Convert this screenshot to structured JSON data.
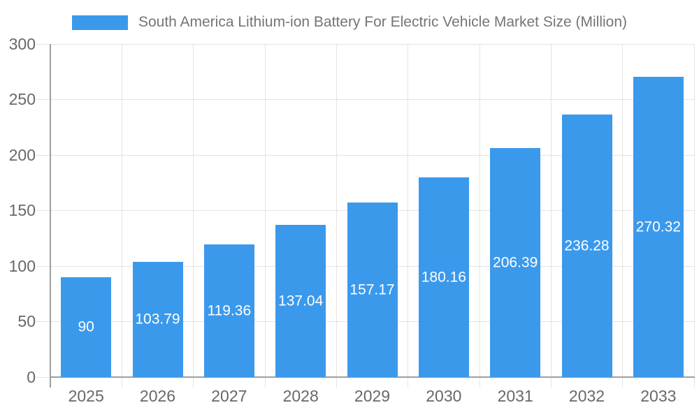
{
  "chart_data": {
    "type": "bar",
    "title": "South America Lithium-ion Battery For Electric Vehicle Market Size (Million)",
    "categories": [
      "2025",
      "2026",
      "2027",
      "2028",
      "2029",
      "2030",
      "2031",
      "2032",
      "2033"
    ],
    "values": [
      90,
      103.79,
      119.36,
      137.04,
      157.17,
      180.16,
      206.39,
      236.28,
      270.32
    ],
    "value_labels": [
      "90",
      "103.79",
      "119.36",
      "137.04",
      "157.17",
      "180.16",
      "206.39",
      "236.28",
      "270.32"
    ],
    "xlabel": "",
    "ylabel": "",
    "ylim": [
      0,
      300
    ],
    "ytick_step": 50,
    "ytick_labels": [
      "0",
      "50",
      "100",
      "150",
      "200",
      "250",
      "300"
    ],
    "grid": true,
    "legend_position": "top",
    "colors": {
      "bar": "#3B99EC",
      "grid": "#E3E3E3",
      "axis": "#9E9E9E",
      "tick_label": "#686868",
      "legend_text": "#757575",
      "value_label": "#FFFFFF",
      "background": "#FFFFFF"
    }
  }
}
